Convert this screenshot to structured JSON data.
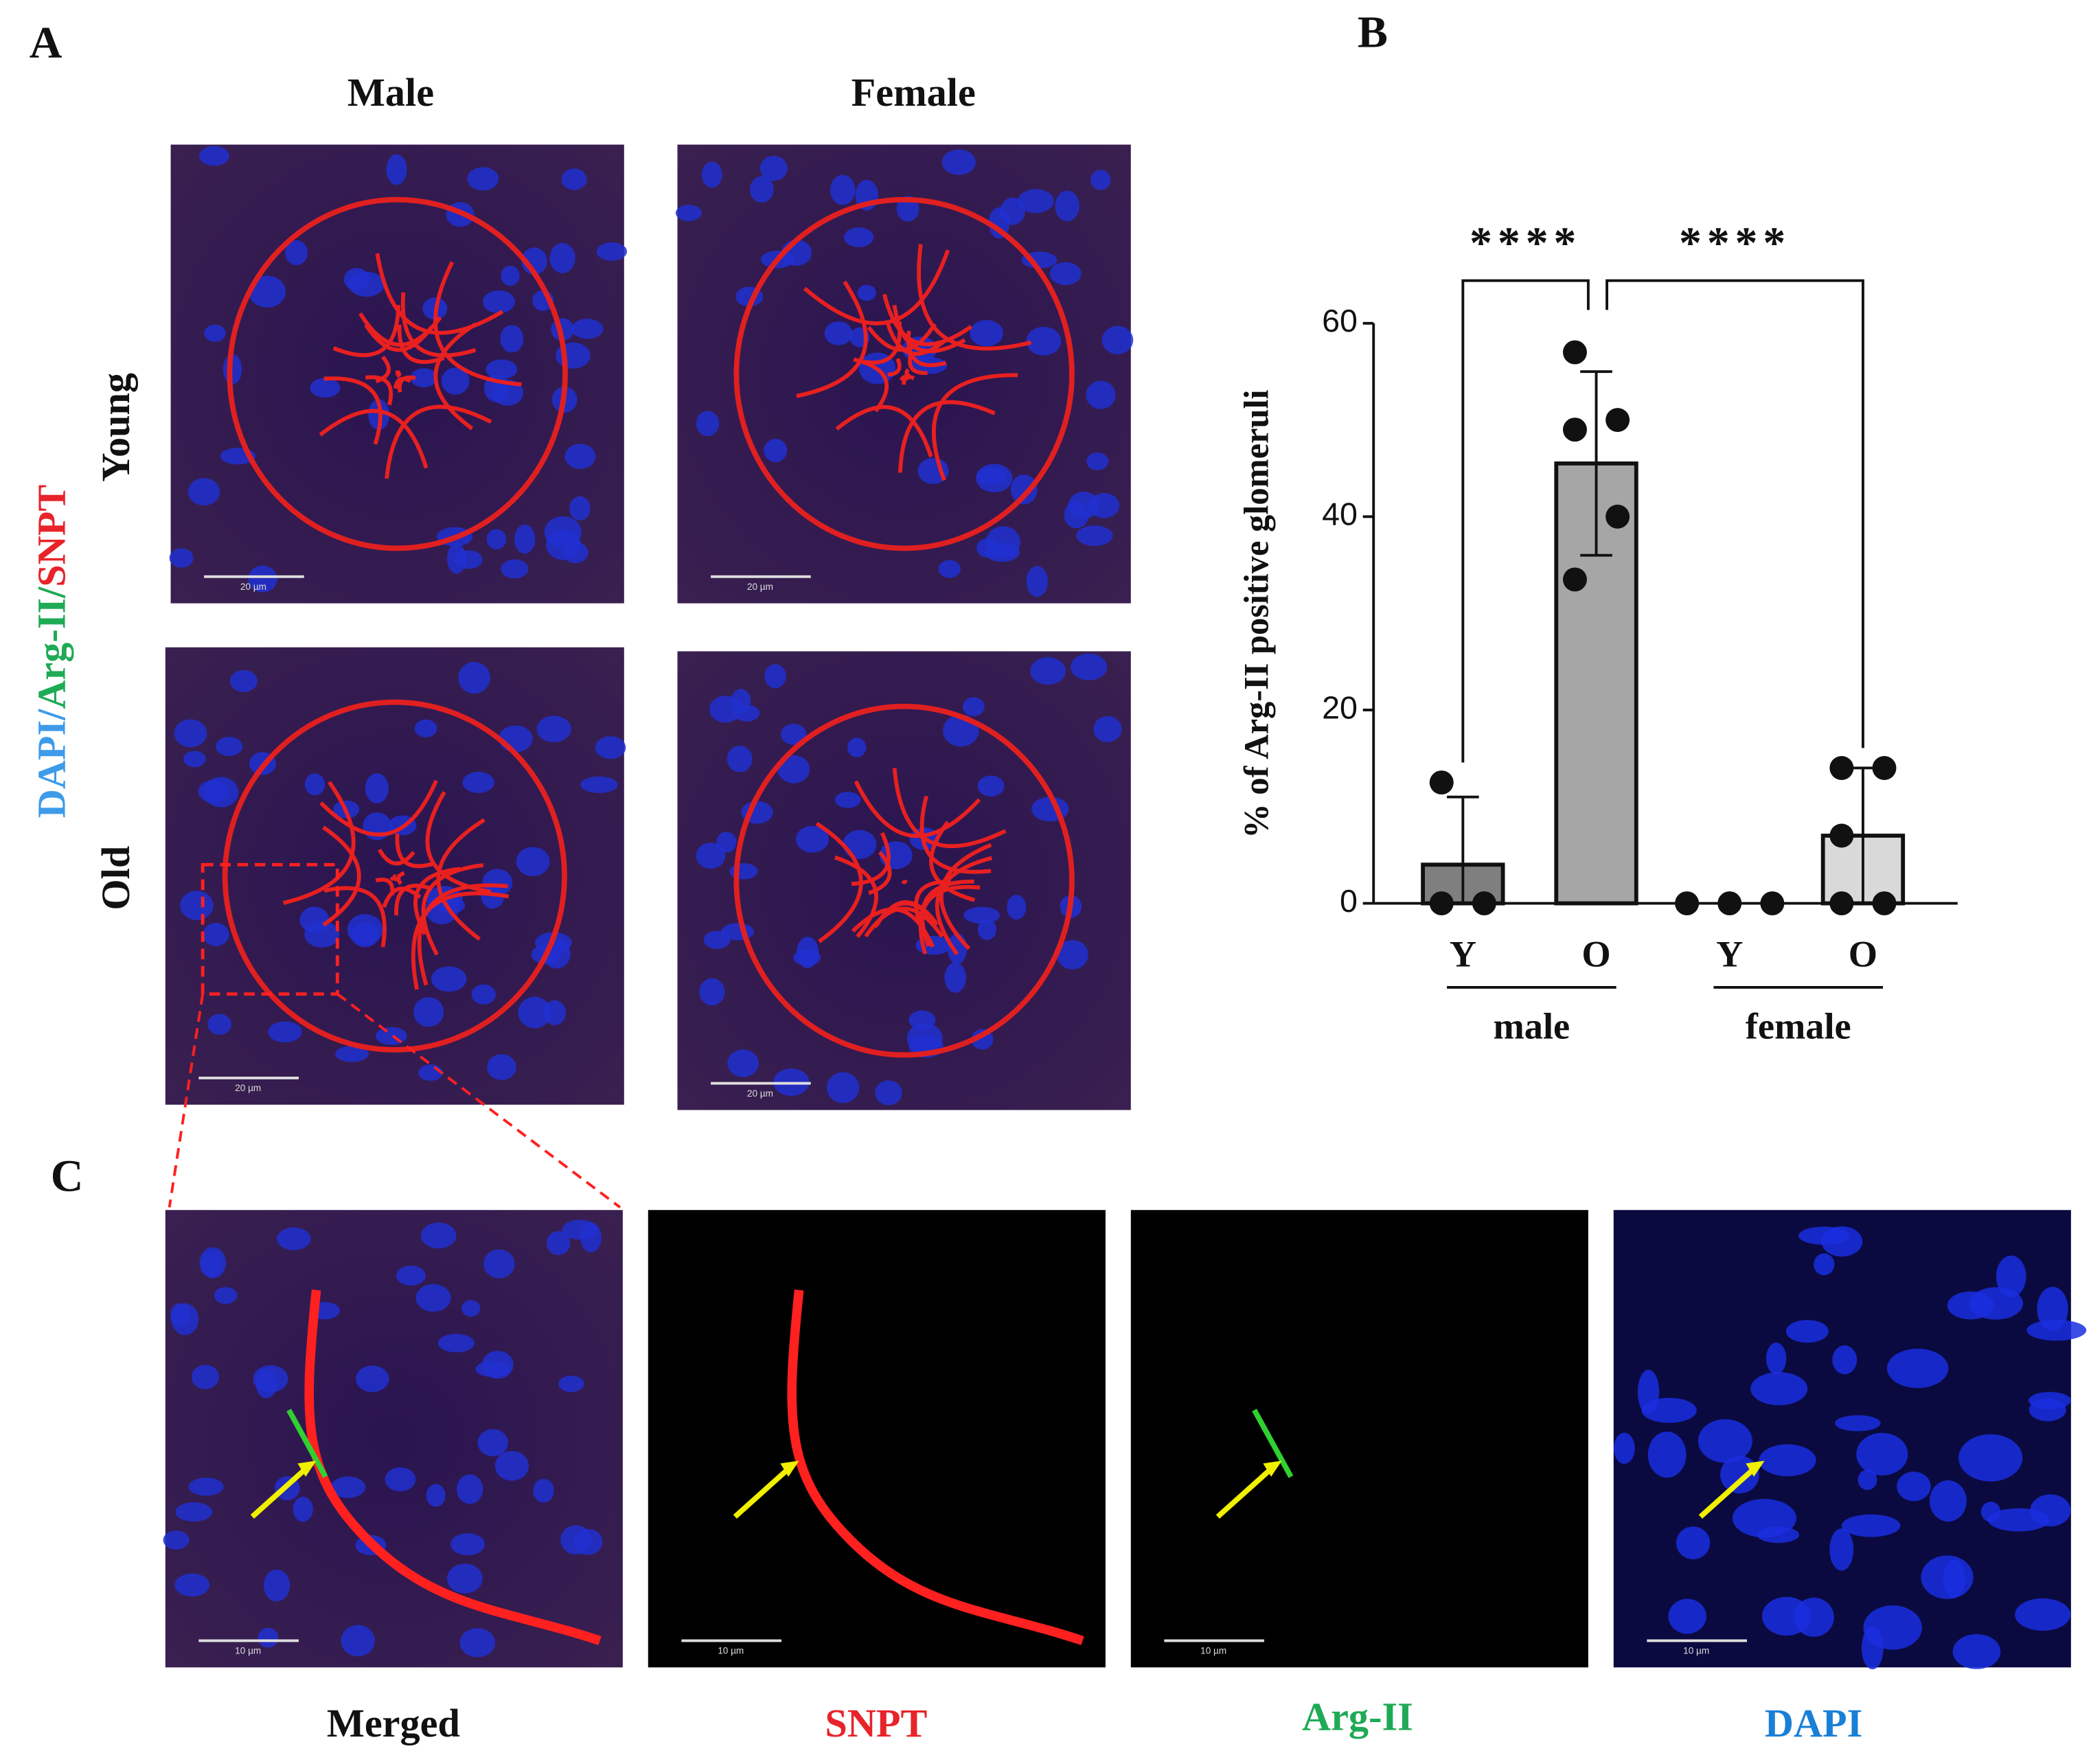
{
  "panel_labels": [
    "A",
    "B",
    "C"
  ],
  "panel_a": {
    "columns": [
      "Male",
      "Female"
    ],
    "rows": [
      "Young",
      "Old"
    ],
    "stain_label": [
      "DAPI/",
      "Arg-II/",
      "SNPT"
    ],
    "scale_bar": "20 µm"
  },
  "panel_c": {
    "channels": [
      "Merged",
      "SNPT",
      "Arg-II",
      "DAPI"
    ],
    "scale_bar": "10 µm"
  },
  "chart_data": {
    "type": "bar",
    "y_label": "% of Arg-II positive glomeruli",
    "categories": [
      "Y",
      "O",
      "Y",
      "O"
    ],
    "groups": [
      "male",
      "female"
    ],
    "values": [
      4,
      45.5,
      0,
      7
    ],
    "errors": [
      7,
      9.5,
      0,
      7
    ],
    "points": [
      [
        12.5,
        0,
        0
      ],
      [
        57,
        50,
        49,
        40,
        33.5
      ],
      [
        0,
        0,
        0
      ],
      [
        14,
        14,
        7,
        0,
        0
      ]
    ],
    "colors": [
      "#7f7f7f",
      "#a6a6a6",
      "#ffffff",
      "#d9d9d9"
    ],
    "ylim": [
      0,
      60
    ],
    "yticks": [
      0,
      20,
      40,
      60
    ],
    "significance": [
      {
        "label": "****",
        "from": 0,
        "to": 1
      },
      {
        "label": "****",
        "from": 1,
        "to": 3
      }
    ]
  }
}
